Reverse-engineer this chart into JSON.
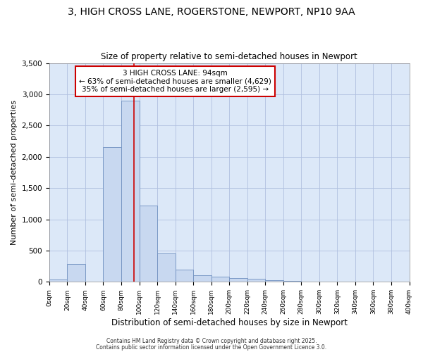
{
  "title_line1": "3, HIGH CROSS LANE, ROGERSTONE, NEWPORT, NP10 9AA",
  "title_line2": "Size of property relative to semi-detached houses in Newport",
  "xlabel": "Distribution of semi-detached houses by size in Newport",
  "ylabel": "Number of semi-detached properties",
  "annotation_line1": "3 HIGH CROSS LANE: 94sqm",
  "annotation_line2": "← 63% of semi-detached houses are smaller (4,629)",
  "annotation_line3": "35% of semi-detached houses are larger (2,595) →",
  "property_size": 94,
  "bin_edges": [
    0,
    20,
    40,
    60,
    80,
    100,
    120,
    140,
    160,
    180,
    200,
    220,
    240,
    260,
    280,
    300,
    320,
    340,
    360,
    380,
    400
  ],
  "counts": [
    40,
    290,
    5,
    2150,
    2900,
    1220,
    450,
    195,
    110,
    80,
    55,
    50,
    30,
    15,
    8,
    5,
    3,
    2,
    1,
    0
  ],
  "bar_color": "#c8d8f0",
  "bar_edge_color": "#7090c0",
  "vline_color": "#cc0000",
  "vline_x": 94,
  "plot_bg_color": "#dce8f8",
  "fig_bg_color": "#ffffff",
  "grid_color": "#b0c0e0",
  "annotation_box_edge": "#cc0000",
  "annotation_box_face": "#ffffff",
  "footer_line1": "Contains HM Land Registry data © Crown copyright and database right 2025.",
  "footer_line2": "Contains public sector information licensed under the Open Government Licence 3.0.",
  "ylim": [
    0,
    3500
  ],
  "xlim": [
    0,
    400
  ]
}
